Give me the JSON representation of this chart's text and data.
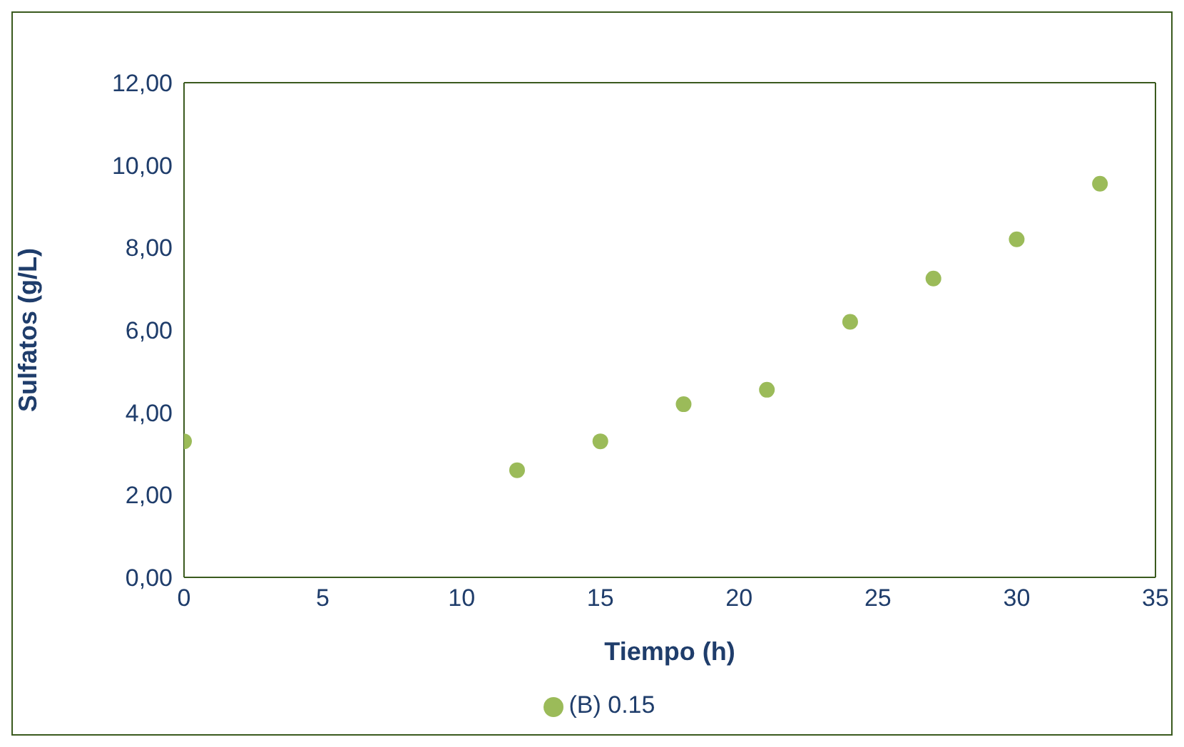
{
  "chart_data": {
    "type": "scatter",
    "xlabel": "Tiempo (h)",
    "ylabel": "Sulfatos (g/L)",
    "x": [
      0,
      12,
      15,
      18,
      21,
      24,
      27,
      30,
      33
    ],
    "series": [
      {
        "name": "(B) 0.15",
        "color": "#9bbb59",
        "values": [
          3.3,
          2.6,
          3.3,
          4.2,
          4.55,
          6.2,
          7.25,
          8.2,
          9.55
        ]
      }
    ],
    "xlim": [
      0,
      35
    ],
    "xticks": [
      0,
      5,
      10,
      15,
      20,
      25,
      30,
      35
    ],
    "ylim": [
      0,
      12
    ],
    "yticks": [
      {
        "value": 0,
        "label": "0,00"
      },
      {
        "value": 2,
        "label": "2,00"
      },
      {
        "value": 4,
        "label": "4,00"
      },
      {
        "value": 6,
        "label": "6,00"
      },
      {
        "value": 8,
        "label": "8,00"
      },
      {
        "value": 10,
        "label": "10,00"
      },
      {
        "value": 12,
        "label": "12,00"
      }
    ],
    "grid": false,
    "legend": "bottom",
    "marker": "circle"
  }
}
